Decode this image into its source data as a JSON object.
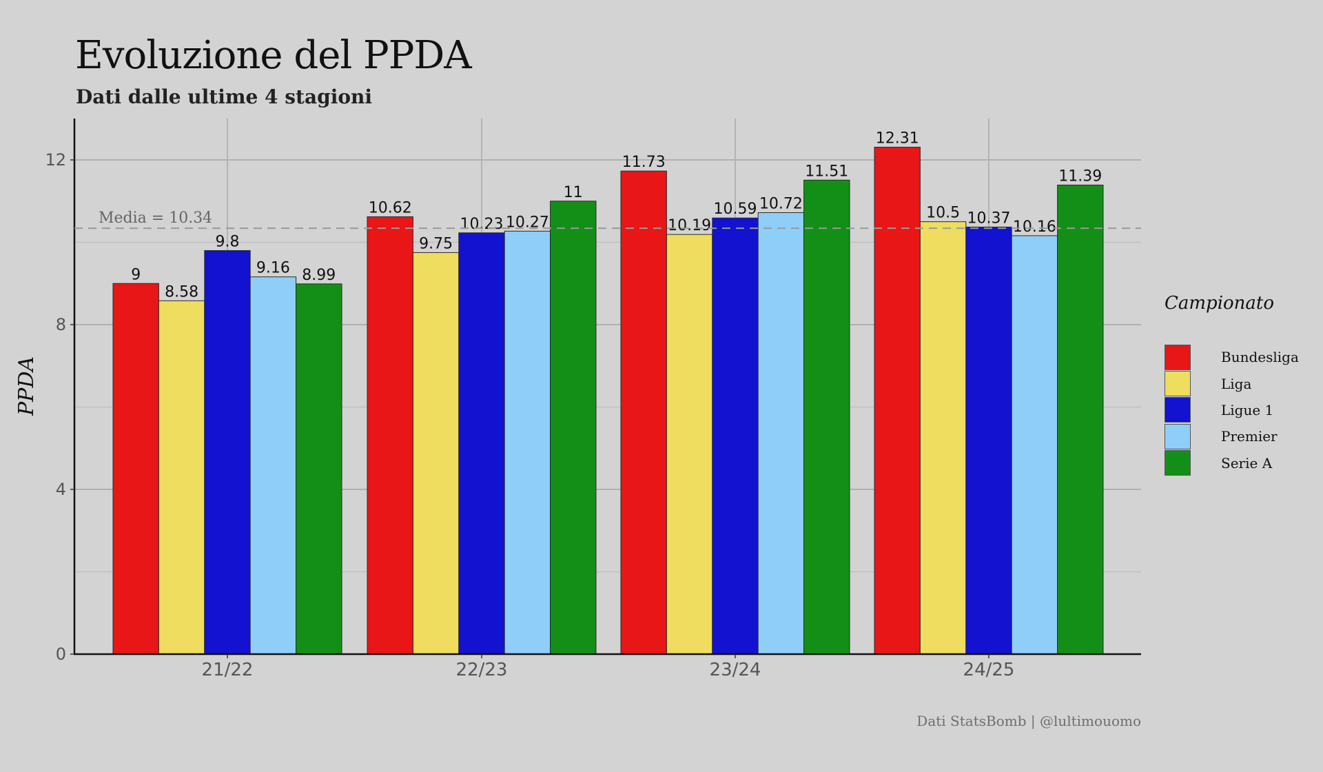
{
  "chart_data": {
    "type": "bar",
    "title": "Evoluzione del PPDA",
    "subtitle": "Dati dalle ultime 4 stagioni",
    "xlabel": "",
    "ylabel": "PPDA",
    "categories": [
      "21/22",
      "22/23",
      "23/24",
      "24/25"
    ],
    "series": [
      {
        "name": "Bundesliga",
        "color": "#e81616",
        "values": [
          9,
          10.62,
          11.73,
          12.31
        ],
        "labels": [
          "9",
          "10.62",
          "11.73",
          "12.31"
        ]
      },
      {
        "name": "Liga",
        "color": "#eedd5e",
        "values": [
          8.58,
          9.75,
          10.19,
          10.5
        ],
        "labels": [
          "8.58",
          "9.75",
          "10.19",
          "10.5"
        ]
      },
      {
        "name": "Ligue 1",
        "color": "#1212d0",
        "values": [
          9.8,
          10.23,
          10.59,
          10.37
        ],
        "labels": [
          "9.8",
          "10.23",
          "10.59",
          "10.37"
        ]
      },
      {
        "name": "Premier",
        "color": "#90cefa",
        "values": [
          9.16,
          10.27,
          10.72,
          10.16
        ],
        "labels": [
          "9.16",
          "10.27",
          "10.72",
          "10.16"
        ]
      },
      {
        "name": "Serie A",
        "color": "#138f17",
        "values": [
          8.99,
          11,
          11.51,
          11.39
        ],
        "labels": [
          "8.99",
          "11",
          "11.51",
          "11.39"
        ]
      }
    ],
    "ylim": [
      0,
      13
    ],
    "yticks": [
      0,
      4,
      8,
      12
    ],
    "ytick_labels": [
      "0",
      "4",
      "8",
      "12"
    ],
    "minor_yticks": [
      2,
      6,
      10
    ],
    "reference_line": {
      "value": 10.34,
      "label": "Media = 10.34"
    },
    "legend_title": "Campionato",
    "legend_position": "right",
    "caption": "Dati StatsBomb | @lultimouomo",
    "grid": true
  }
}
